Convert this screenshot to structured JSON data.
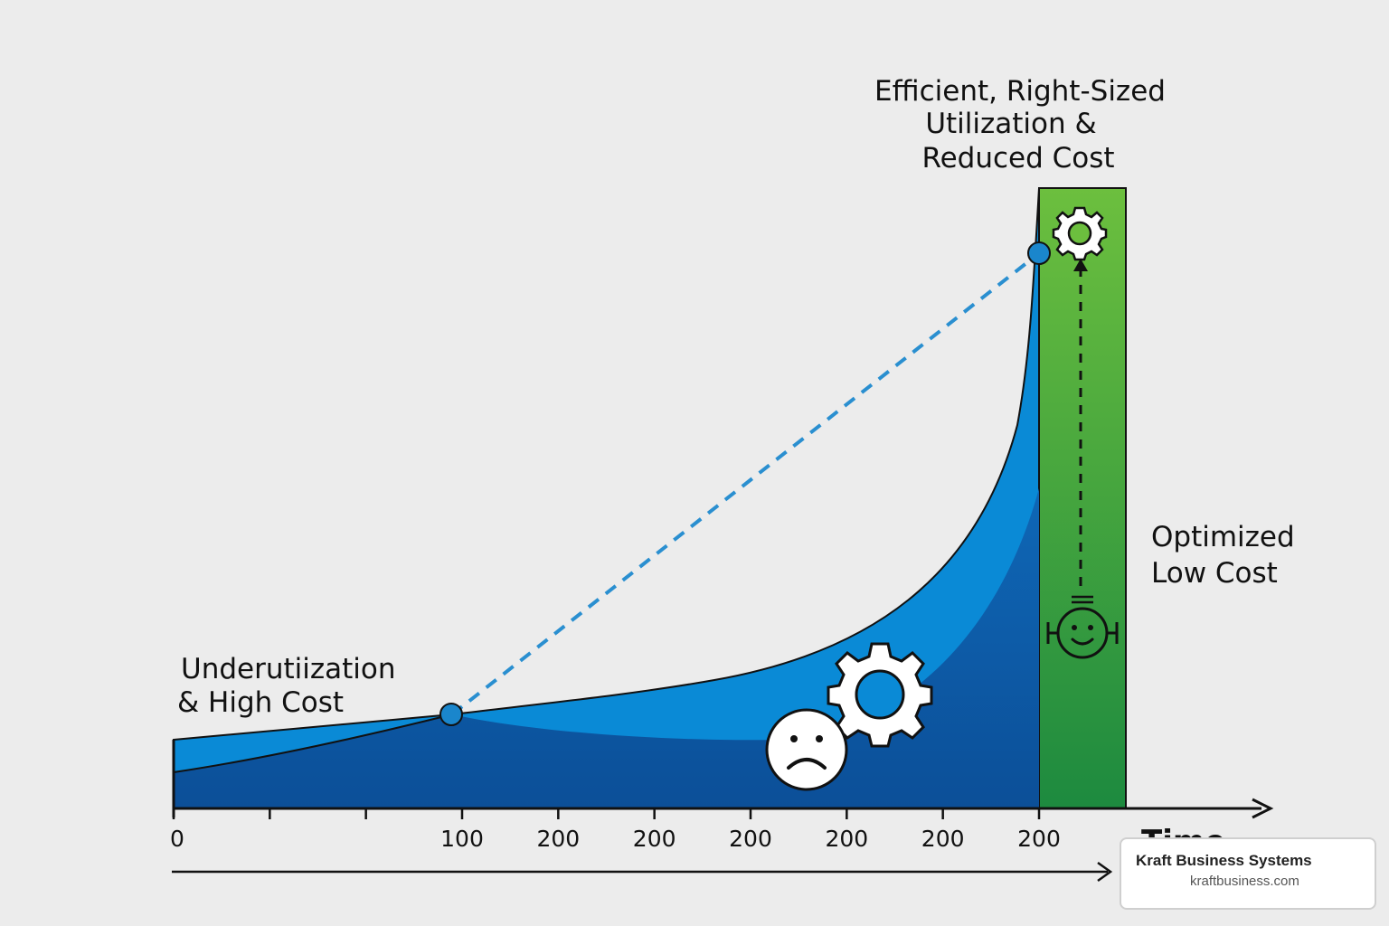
{
  "chart_data": {
    "type": "area",
    "x_ticks": [
      "0",
      "",
      "",
      "100",
      "200",
      "200",
      "200",
      "200",
      "200",
      "200"
    ],
    "xlabel": "Time",
    "annotations": {
      "top": [
        "Efficient, Right-Sized",
        "Utilization &",
        "Reduced Cost"
      ],
      "left": [
        "Underutiization",
        "& High Cost"
      ],
      "right": [
        "Optimized",
        "Low Cost"
      ]
    },
    "markers": [
      "100",
      "200"
    ],
    "colors": {
      "area_light": "#0a8ad6",
      "area_dark": "#0d5aa7",
      "optimized_band": "#4aa63a",
      "dashed_line": "#2a8fd0",
      "axis": "#111111"
    },
    "icons": [
      "sad-face-icon",
      "gear-icon",
      "gear-small-icon",
      "smile-face-icon",
      "up-arrow-icon"
    ]
  },
  "watermark": {
    "company": "Kraft Business Systems",
    "url": "kraftbusiness.com"
  }
}
